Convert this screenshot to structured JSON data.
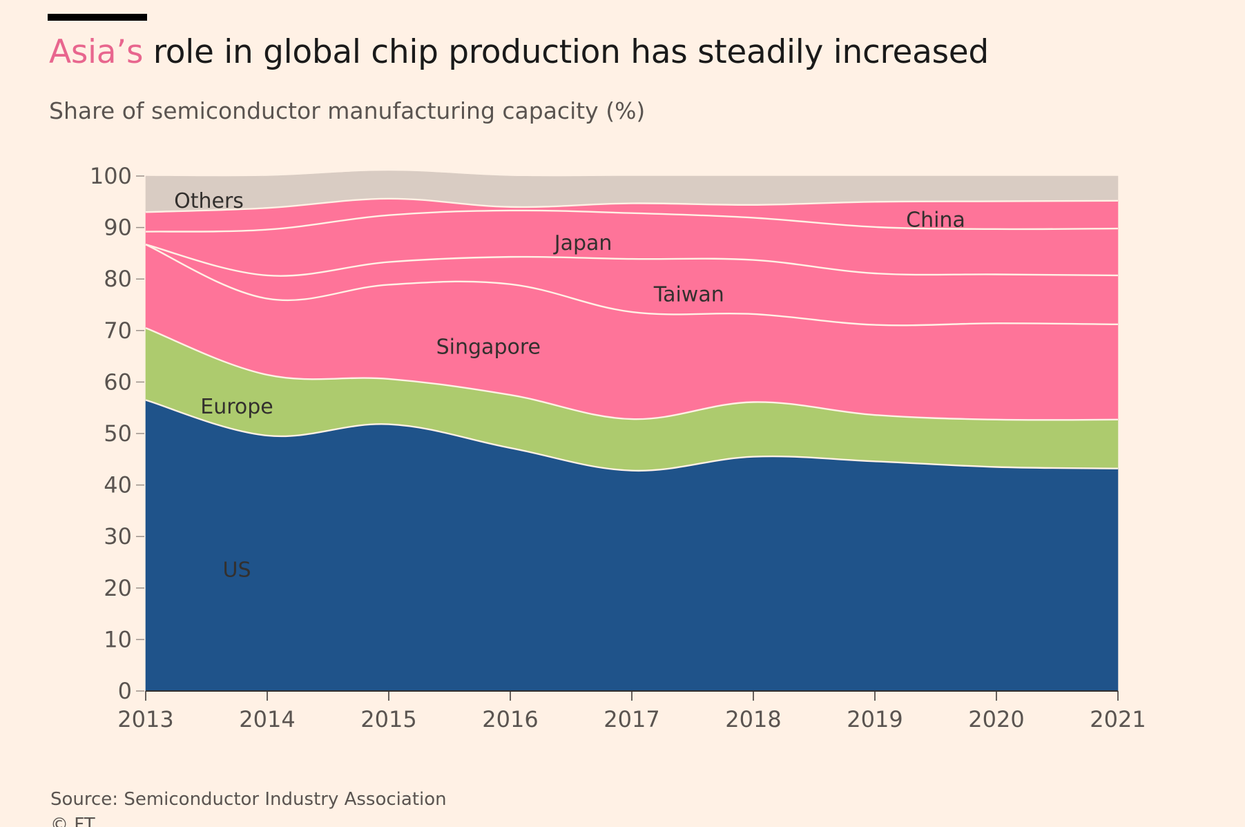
{
  "header": {
    "title_highlight": "Asia’s",
    "title_rest": " role in global chip production has steadily increased",
    "subtitle": "Share of semiconductor manufacturing capacity (%)"
  },
  "footer": {
    "source": "Source: Semiconductor Industry Association",
    "copyright": "© FT"
  },
  "colors": {
    "us": "#1F538A",
    "europe": "#ADCB6E",
    "asia": "#FE7499",
    "others": "#D9CCC3",
    "highlight": "#E8668E",
    "divider": "#FFF1E5"
  },
  "chart_data": {
    "type": "area",
    "stacked": true,
    "x": [
      2013,
      2014,
      2015,
      2016,
      2017,
      2018,
      2019,
      2020,
      2021
    ],
    "ylim": [
      0,
      100
    ],
    "yticks": [
      0,
      10,
      20,
      30,
      40,
      50,
      60,
      70,
      80,
      90,
      100
    ],
    "xticks": [
      "2013",
      "2014",
      "2015",
      "2016",
      "2017",
      "2018",
      "2019",
      "2020",
      "2021"
    ],
    "series": [
      {
        "name": "US",
        "values": [
          56.5,
          49.6,
          51.8,
          47.2,
          42.8,
          45.5,
          44.6,
          43.5,
          43.2
        ],
        "color": "#1F538A"
      },
      {
        "name": "Europe",
        "values": [
          14.0,
          11.8,
          8.8,
          10.3,
          10.0,
          10.6,
          9.0,
          9.2,
          9.5
        ],
        "color": "#ADCB6E"
      },
      {
        "name": "Singapore",
        "values": [
          16.2,
          14.8,
          18.3,
          21.5,
          20.8,
          17.1,
          17.5,
          18.7,
          18.5
        ],
        "color": "#FE7499"
      },
      {
        "name": "Taiwan",
        "values": [
          0.0,
          4.5,
          4.4,
          5.3,
          10.3,
          10.5,
          10.0,
          9.5,
          9.5
        ],
        "color": "#FE7499"
      },
      {
        "name": "Japan",
        "values": [
          2.5,
          8.9,
          9.1,
          9.0,
          8.9,
          8.2,
          9.0,
          8.8,
          9.1
        ],
        "color": "#FE7499"
      },
      {
        "name": "China",
        "values": [
          3.8,
          4.2,
          3.2,
          0.7,
          1.9,
          2.5,
          4.9,
          5.4,
          5.4
        ],
        "color": "#FE7499"
      },
      {
        "name": "Others",
        "values": [
          7.0,
          6.2,
          5.4,
          6.0,
          5.3,
          5.6,
          5.0,
          4.9,
          4.8
        ],
        "color": "#D9CCC3"
      }
    ],
    "labels": [
      {
        "text": "Others",
        "x": 2013.52,
        "y": 95.2
      },
      {
        "text": "China",
        "x": 2019.5,
        "y": 91.5
      },
      {
        "text": "Japan",
        "x": 2016.6,
        "y": 87.0
      },
      {
        "text": "Taiwan",
        "x": 2017.47,
        "y": 77.0
      },
      {
        "text": "Singapore",
        "x": 2015.82,
        "y": 66.8
      },
      {
        "text": "Europe",
        "x": 2013.75,
        "y": 55.2
      },
      {
        "text": "US",
        "x": 2013.75,
        "y": 23.5
      }
    ]
  }
}
